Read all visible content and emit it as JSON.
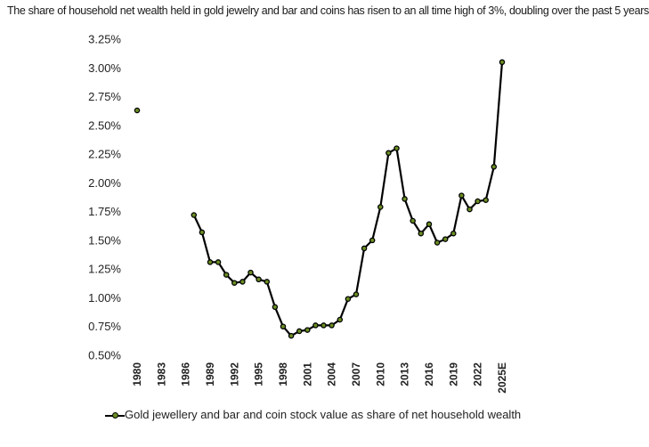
{
  "headline": "The share of household net wealth held in gold jewelry and bar and coins has risen to an all time high of 3%, doubling over the past 5 years",
  "chart_data": {
    "type": "line",
    "title": "",
    "xlabel": "",
    "ylabel": "",
    "ylim": [
      0.5,
      3.25
    ],
    "y_tick_labels": [
      "0.50%",
      "0.75%",
      "1.00%",
      "1.25%",
      "1.50%",
      "1.75%",
      "2.00%",
      "2.25%",
      "2.50%",
      "2.75%",
      "3.00%",
      "3.25%"
    ],
    "x_tick_labels": [
      "1980",
      "1983",
      "1986",
      "1989",
      "1992",
      "1995",
      "1998",
      "2001",
      "2004",
      "2007",
      "2010",
      "2013",
      "2016",
      "2019",
      "2022",
      "2025E"
    ],
    "x": [
      "1980",
      "1981",
      "1982",
      "1983",
      "1984",
      "1985",
      "1986",
      "1987",
      "1988",
      "1989",
      "1990",
      "1991",
      "1992",
      "1993",
      "1994",
      "1995",
      "1996",
      "1997",
      "1998",
      "1999",
      "2000",
      "2001",
      "2002",
      "2003",
      "2004",
      "2005",
      "2006",
      "2007",
      "2008",
      "2009",
      "2010",
      "2011",
      "2012",
      "2013",
      "2014",
      "2015",
      "2016",
      "2017",
      "2018",
      "2019",
      "2020",
      "2021",
      "2022",
      "2023",
      "2024",
      "2025E"
    ],
    "series": [
      {
        "name": "Gold jewellery and bar and coin stock value as share of net household wealth",
        "values": [
          2.63,
          null,
          null,
          null,
          null,
          null,
          null,
          1.72,
          1.57,
          1.31,
          1.31,
          1.2,
          1.13,
          1.14,
          1.22,
          1.16,
          1.14,
          0.92,
          0.75,
          0.67,
          0.71,
          0.72,
          0.76,
          0.76,
          0.76,
          0.81,
          0.99,
          1.03,
          1.43,
          1.5,
          1.79,
          2.26,
          2.3,
          1.86,
          1.67,
          1.56,
          1.64,
          1.48,
          1.51,
          1.56,
          1.89,
          1.77,
          1.84,
          1.85,
          2.14,
          3.05
        ]
      }
    ],
    "line_color": "#000000",
    "marker_color": "#6b8e23",
    "grid": false,
    "legend_position": "bottom"
  }
}
